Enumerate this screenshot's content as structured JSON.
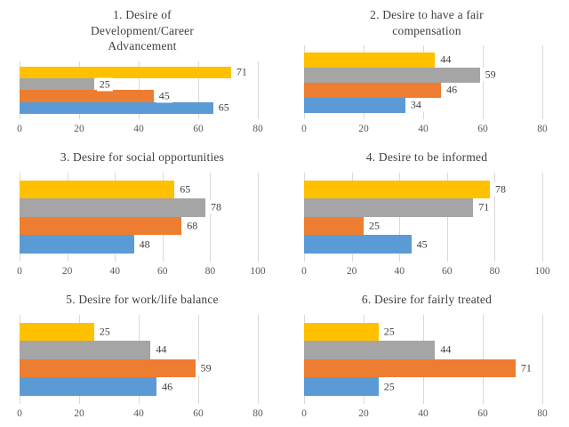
{
  "page": {
    "background": "#ffffff",
    "layout": "2x3 grid of horizontal bar charts",
    "legend": "none visible"
  },
  "palette": {
    "yellow": "#FFC000",
    "gray": "#A5A5A5",
    "orange": "#ED7D31",
    "blue": "#5B9BD5",
    "gridline": "#D9D9D9",
    "title_color": "#3F3F3F",
    "tick_color": "#595959",
    "label_color": "#404040",
    "label_background": "#FFFFFF"
  },
  "chart_data": [
    {
      "type": "bar",
      "orientation": "horizontal",
      "title": "1. Desire of\nDevelopment/Career\nAdvancement",
      "bars": [
        {
          "series": "yellow",
          "value": 71
        },
        {
          "series": "gray",
          "value": 25
        },
        {
          "series": "orange",
          "value": 45
        },
        {
          "series": "blue",
          "value": 65
        }
      ],
      "xlim": [
        0,
        80
      ],
      "xticks": [
        0,
        20,
        40,
        60,
        80
      ],
      "grid": true
    },
    {
      "type": "bar",
      "orientation": "horizontal",
      "title": "2. Desire to have a fair\ncompensation",
      "bars": [
        {
          "series": "yellow",
          "value": 44
        },
        {
          "series": "gray",
          "value": 59
        },
        {
          "series": "orange",
          "value": 46
        },
        {
          "series": "blue",
          "value": 34
        }
      ],
      "xlim": [
        0,
        80
      ],
      "xticks": [
        0,
        20,
        40,
        60,
        80
      ],
      "grid": true
    },
    {
      "type": "bar",
      "orientation": "horizontal",
      "title": "3. Desire for social opportunities",
      "bars": [
        {
          "series": "yellow",
          "value": 65
        },
        {
          "series": "gray",
          "value": 78
        },
        {
          "series": "orange",
          "value": 68
        },
        {
          "series": "blue",
          "value": 48
        }
      ],
      "xlim": [
        0,
        100
      ],
      "xticks": [
        0,
        20,
        40,
        60,
        80,
        100
      ],
      "grid": true
    },
    {
      "type": "bar",
      "orientation": "horizontal",
      "title": "4. Desire to be informed",
      "bars": [
        {
          "series": "yellow",
          "value": 78
        },
        {
          "series": "gray",
          "value": 71
        },
        {
          "series": "orange",
          "value": 25
        },
        {
          "series": "blue",
          "value": 45
        }
      ],
      "xlim": [
        0,
        100
      ],
      "xticks": [
        0,
        20,
        40,
        60,
        80,
        100
      ],
      "grid": true
    },
    {
      "type": "bar",
      "orientation": "horizontal",
      "title": "5. Desire for work/life balance",
      "bars": [
        {
          "series": "yellow",
          "value": 25
        },
        {
          "series": "gray",
          "value": 44
        },
        {
          "series": "orange",
          "value": 59
        },
        {
          "series": "blue",
          "value": 46
        }
      ],
      "xlim": [
        0,
        80
      ],
      "xticks": [
        0,
        20,
        40,
        60,
        80
      ],
      "grid": true
    },
    {
      "type": "bar",
      "orientation": "horizontal",
      "title": "6. Desire for fairly treated",
      "bars": [
        {
          "series": "yellow",
          "value": 25
        },
        {
          "series": "gray",
          "value": 44
        },
        {
          "series": "orange",
          "value": 71
        },
        {
          "series": "blue",
          "value": 25
        }
      ],
      "xlim": [
        0,
        80
      ],
      "xticks": [
        0,
        20,
        40,
        60,
        80
      ],
      "grid": true
    }
  ]
}
